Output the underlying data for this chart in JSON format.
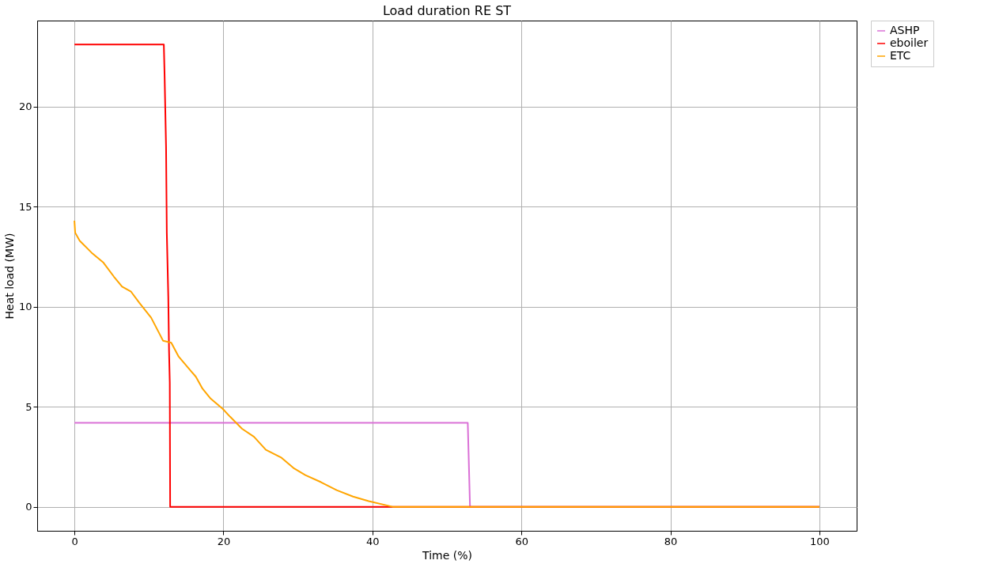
{
  "chart_data": {
    "type": "line",
    "title": "Load duration RE ST",
    "xlabel": "Time (%)",
    "ylabel": "Heat load (MW)",
    "xlim": [
      -5,
      105
    ],
    "ylim": [
      -1.2,
      24.3
    ],
    "xticks": [
      0,
      20,
      40,
      60,
      80,
      100
    ],
    "yticks": [
      0,
      5,
      10,
      15,
      20
    ],
    "grid": true,
    "legend": "right",
    "line_style": "solid",
    "marker": "none",
    "series": [
      {
        "name": "ASHP",
        "color": "#da70d6",
        "x": [
          0,
          52.8,
          53.1,
          100
        ],
        "values": [
          4.2,
          4.2,
          0,
          0
        ]
      },
      {
        "name": "eboiler",
        "color": "#ff0000",
        "x": [
          0,
          12.0,
          12.1,
          12.3,
          12.4,
          12.6,
          12.7,
          12.8,
          12.85,
          100
        ],
        "values": [
          23.1,
          23.1,
          21.6,
          18,
          13.7,
          10.5,
          7.8,
          6.2,
          0,
          0
        ]
      },
      {
        "name": "ETC",
        "color": "#ffa500",
        "x": [
          0,
          0.1,
          0.7,
          2.3,
          3.9,
          5.3,
          6.4,
          7.6,
          8.7,
          10.3,
          11.4,
          11.9,
          13.0,
          14.0,
          15.6,
          16.3,
          17.2,
          18.3,
          19.9,
          20.9,
          22.5,
          24.1,
          25.7,
          27.8,
          29.4,
          31.0,
          33.1,
          35.2,
          37.4,
          39.5,
          42.7,
          100
        ],
        "values": [
          14.3,
          13.7,
          13.3,
          12.7,
          12.2,
          11.5,
          11.0,
          10.75,
          10.2,
          9.45,
          8.66,
          8.3,
          8.2,
          7.5,
          6.8,
          6.5,
          5.9,
          5.4,
          4.9,
          4.5,
          3.9,
          3.5,
          2.85,
          2.45,
          1.94,
          1.58,
          1.23,
          0.83,
          0.51,
          0.28,
          0,
          0
        ]
      }
    ]
  }
}
